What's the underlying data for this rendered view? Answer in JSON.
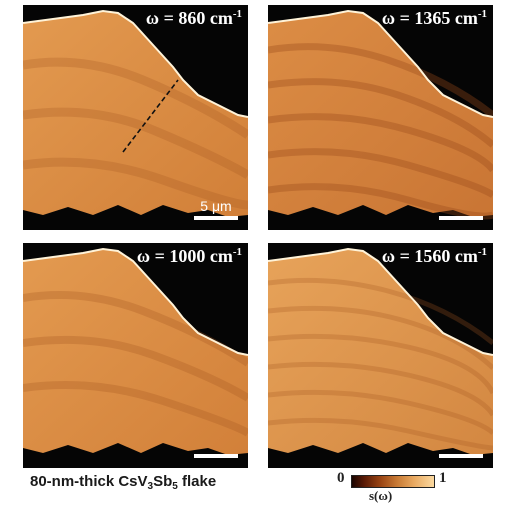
{
  "panels": [
    {
      "id": "p1",
      "omega_prefix": "ω = 860 cm",
      "omega_exp": "-1",
      "scale_label": "5 μm"
    },
    {
      "id": "p2",
      "omega_prefix": "ω = 1365 cm",
      "omega_exp": "-1",
      "scale_label": ""
    },
    {
      "id": "p3",
      "omega_prefix": "ω = 1000 cm",
      "omega_exp": "-1",
      "scale_label": ""
    },
    {
      "id": "p4",
      "omega_prefix": "ω = 1560 cm",
      "omega_exp": "-1",
      "scale_label": ""
    }
  ],
  "caption": {
    "prefix": "80-nm-thick CsV",
    "sub1": "3",
    "mid": "Sb",
    "sub2": "5",
    "suffix": " flake"
  },
  "colorbar": {
    "min": "0",
    "max": "1",
    "label": "s(ω)"
  },
  "colors": {
    "flake_base": "#d9893f",
    "background": "#050505",
    "fringe_dark": "#a85a22",
    "fringe_light": "#f0b060",
    "edge": "#fff3d8"
  }
}
